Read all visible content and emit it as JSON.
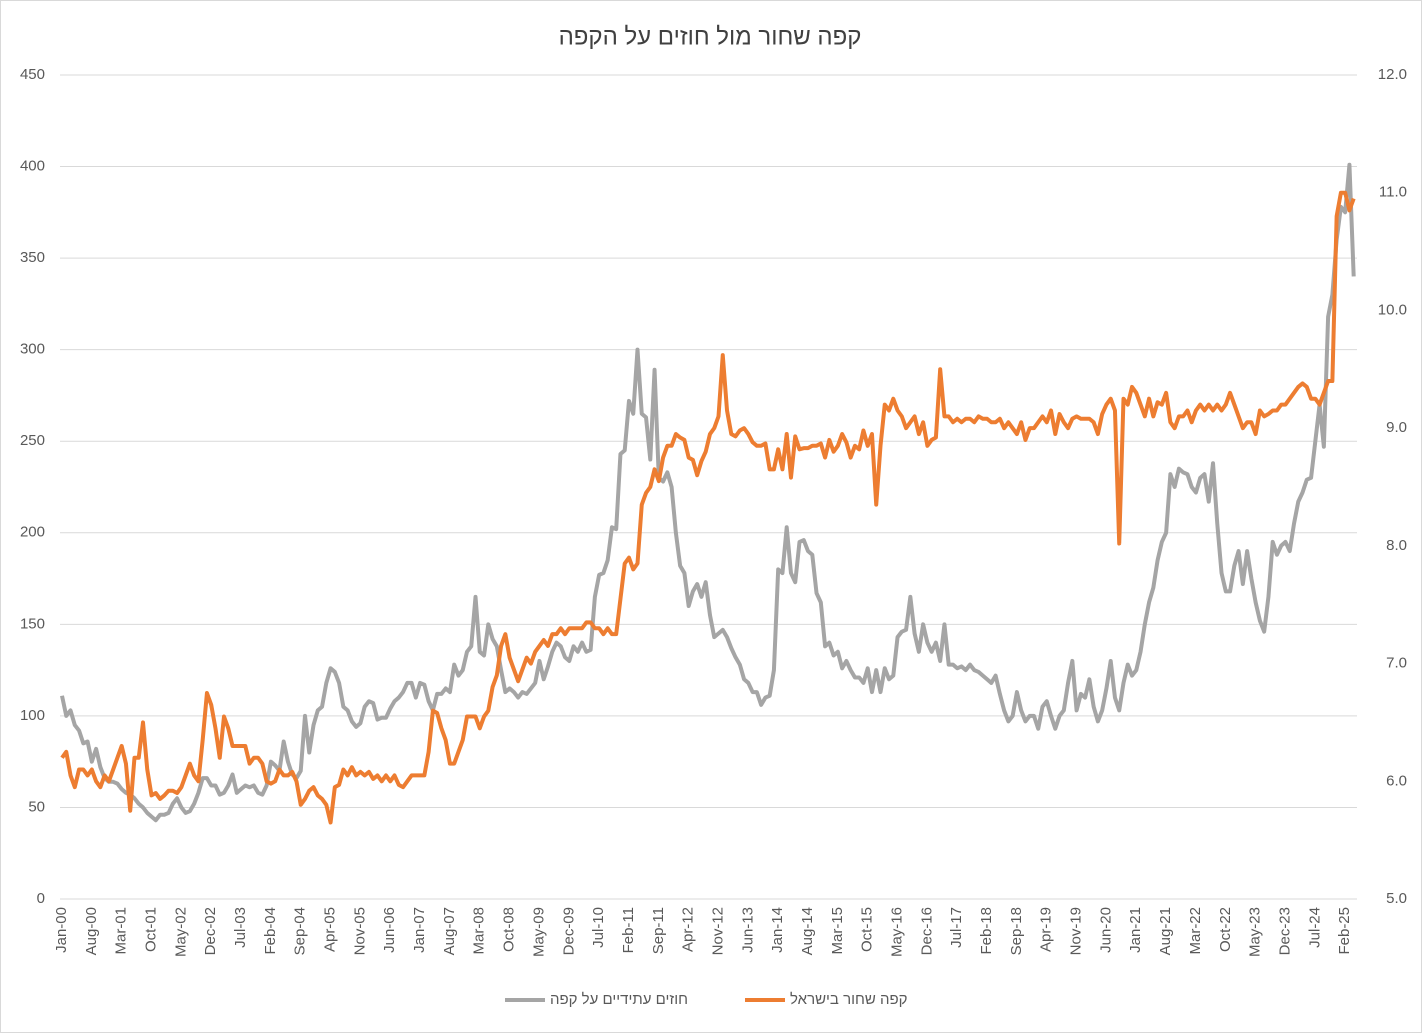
{
  "chart_data": {
    "type": "line",
    "title": "קפה שחור מול חוזים על הקפה",
    "categories": [
      "Jan-00",
      null,
      null,
      null,
      null,
      null,
      null,
      "Aug-00",
      null,
      null,
      null,
      null,
      null,
      null,
      "Mar-01",
      null,
      null,
      null,
      null,
      null,
      null,
      "Oct-01",
      null,
      null,
      null,
      null,
      null,
      null,
      "May-02",
      null,
      null,
      null,
      null,
      null,
      null,
      "Dec-02",
      null,
      null,
      null,
      null,
      null,
      null,
      "Jul-03",
      null,
      null,
      null,
      null,
      null,
      null,
      "Feb-04",
      null,
      null,
      null,
      null,
      null,
      null,
      "Sep-04",
      null,
      null,
      null,
      null,
      null,
      null,
      "Apr-05",
      null,
      null,
      null,
      null,
      null,
      null,
      "Nov-05",
      null,
      null,
      null,
      null,
      null,
      null,
      "Jun-06",
      null,
      null,
      null,
      null,
      null,
      null,
      "Jan-07",
      null,
      null,
      null,
      null,
      null,
      null,
      "Aug-07",
      null,
      null,
      null,
      null,
      null,
      null,
      "Mar-08",
      null,
      null,
      null,
      null,
      null,
      null,
      "Oct-08",
      null,
      null,
      null,
      null,
      null,
      null,
      "May-09",
      null,
      null,
      null,
      null,
      null,
      null,
      "Dec-09",
      null,
      null,
      null,
      null,
      null,
      null,
      "Jul-10",
      null,
      null,
      null,
      null,
      null,
      null,
      "Feb-11",
      null,
      null,
      null,
      null,
      null,
      null,
      "Sep-11",
      null,
      null,
      null,
      null,
      null,
      null,
      "Apr-12",
      null,
      null,
      null,
      null,
      null,
      null,
      "Nov-12",
      null,
      null,
      null,
      null,
      null,
      null,
      "Jun-13",
      null,
      null,
      null,
      null,
      null,
      null,
      "Jan-14",
      null,
      null,
      null,
      null,
      null,
      null,
      "Aug-14",
      null,
      null,
      null,
      null,
      null,
      null,
      "Mar-15",
      null,
      null,
      null,
      null,
      null,
      null,
      "Oct-15",
      null,
      null,
      null,
      null,
      null,
      null,
      "May-16",
      null,
      null,
      null,
      null,
      null,
      null,
      "Dec-16",
      null,
      null,
      null,
      null,
      null,
      null,
      "Jul-17",
      null,
      null,
      null,
      null,
      null,
      null,
      "Feb-18",
      null,
      null,
      null,
      null,
      null,
      null,
      "Sep-18",
      null,
      null,
      null,
      null,
      null,
      null,
      "Apr-19",
      null,
      null,
      null,
      null,
      null,
      null,
      "Nov-19",
      null,
      null,
      null,
      null,
      null,
      null,
      "Jun-20",
      null,
      null,
      null,
      null,
      null,
      null,
      "Jan-21",
      null,
      null,
      null,
      null,
      null,
      null,
      "Aug-21",
      null,
      null,
      null,
      null,
      null,
      null,
      "Mar-22",
      null,
      null,
      null,
      null,
      null,
      null,
      "Oct-22",
      null,
      null,
      null,
      null,
      null,
      null,
      "May-23",
      null,
      null,
      null,
      null,
      null,
      null,
      "Dec-23",
      null,
      null,
      null,
      null,
      null,
      null,
      "Jul-24",
      null,
      null,
      null,
      null,
      null,
      null,
      "Feb-25",
      null,
      null
    ],
    "series": [
      {
        "name": "חוזים עתידיים על קפה",
        "color": "#a5a5a5",
        "axis": "y",
        "values": [
          111,
          100,
          103,
          95,
          92,
          85,
          86,
          75,
          82,
          72,
          66,
          64,
          64,
          63,
          60,
          58,
          57,
          55,
          52,
          50,
          47,
          45,
          43,
          46,
          46,
          47,
          52,
          55,
          50,
          47,
          48,
          52,
          58,
          66,
          66,
          62,
          62,
          57,
          58,
          62,
          68,
          58,
          60,
          62,
          61,
          62,
          58,
          57,
          62,
          75,
          73,
          70,
          86,
          75,
          68,
          66,
          70,
          100,
          80,
          95,
          103,
          105,
          118,
          126,
          124,
          118,
          105,
          103,
          97,
          94,
          96,
          105,
          108,
          107,
          98,
          99,
          99,
          104,
          108,
          110,
          113,
          118,
          118,
          110,
          118,
          117,
          108,
          103,
          112,
          112,
          115,
          113,
          128,
          122,
          125,
          135,
          138,
          165,
          135,
          133,
          150,
          142,
          138,
          125,
          113,
          115,
          113,
          110,
          113,
          112,
          115,
          118,
          130,
          120,
          127,
          135,
          140,
          138,
          132,
          130,
          138,
          135,
          140,
          135,
          136,
          165,
          177,
          178,
          185,
          203,
          202,
          243,
          245,
          272,
          265,
          300,
          265,
          263,
          240,
          289,
          230,
          228,
          233,
          225,
          200,
          182,
          178,
          160,
          168,
          172,
          165,
          173,
          155,
          143,
          145,
          147,
          143,
          137,
          132,
          128,
          120,
          118,
          113,
          113,
          106,
          110,
          111,
          125,
          180,
          178,
          203,
          178,
          173,
          195,
          196,
          190,
          188,
          167,
          162,
          138,
          140,
          133,
          135,
          126,
          130,
          125,
          121,
          121,
          118,
          126,
          113,
          125,
          113,
          126,
          120,
          122,
          143,
          146,
          147,
          165,
          145,
          135,
          150,
          140,
          135,
          140,
          130,
          150,
          128,
          128,
          126,
          127,
          125,
          128,
          125,
          124,
          122,
          120,
          118,
          122,
          112,
          103,
          97,
          100,
          113,
          103,
          97,
          100,
          100,
          93,
          105,
          108,
          100,
          93,
          100,
          103,
          118,
          130,
          103,
          112,
          110,
          120,
          105,
          97,
          103,
          115,
          130,
          110,
          103,
          118,
          128,
          122,
          125,
          135,
          150,
          162,
          170,
          185,
          195,
          200,
          232,
          225,
          235,
          233,
          232,
          225,
          222,
          230,
          232,
          217,
          238,
          205,
          178,
          168,
          168,
          182,
          190,
          172,
          190,
          175,
          162,
          152,
          146,
          165,
          195,
          188,
          193,
          195,
          190,
          205,
          217,
          222,
          229,
          230,
          250,
          270,
          247,
          318,
          330,
          360,
          378,
          375,
          401,
          340
        ]
      },
      {
        "name": "קפה שחור בישראל",
        "color": "#ed7d31",
        "axis": "y2",
        "values": [
          6.2,
          6.25,
          6.05,
          5.95,
          6.1,
          6.1,
          6.05,
          6.1,
          6.0,
          5.95,
          6.05,
          6.0,
          6.1,
          6.2,
          6.3,
          6.15,
          5.75,
          6.2,
          6.2,
          6.5,
          6.1,
          5.88,
          5.9,
          5.85,
          5.88,
          5.92,
          5.92,
          5.9,
          5.95,
          6.05,
          6.15,
          6.05,
          6.0,
          6.35,
          6.75,
          6.65,
          6.45,
          6.2,
          6.55,
          6.45,
          6.3,
          6.3,
          6.3,
          6.3,
          6.15,
          6.2,
          6.2,
          6.15,
          6.0,
          5.98,
          6.0,
          6.1,
          6.05,
          6.05,
          6.08,
          6.0,
          5.8,
          5.85,
          5.92,
          5.95,
          5.88,
          5.85,
          5.8,
          5.65,
          5.95,
          5.97,
          6.1,
          6.05,
          6.12,
          6.05,
          6.08,
          6.05,
          6.08,
          6.02,
          6.05,
          6.0,
          6.05,
          6.0,
          6.05,
          5.97,
          5.95,
          6.0,
          6.05,
          6.05,
          6.05,
          6.05,
          6.25,
          6.6,
          6.58,
          6.45,
          6.35,
          6.15,
          6.15,
          6.25,
          6.35,
          6.55,
          6.55,
          6.55,
          6.45,
          6.55,
          6.6,
          6.8,
          6.9,
          7.15,
          7.25,
          7.05,
          6.95,
          6.85,
          6.95,
          7.05,
          7.0,
          7.1,
          7.15,
          7.2,
          7.15,
          7.25,
          7.25,
          7.3,
          7.25,
          7.3,
          7.3,
          7.3,
          7.3,
          7.35,
          7.35,
          7.3,
          7.3,
          7.25,
          7.3,
          7.25,
          7.25,
          7.55,
          7.85,
          7.9,
          7.8,
          7.85,
          8.35,
          8.45,
          8.5,
          8.65,
          8.55,
          8.75,
          8.85,
          8.85,
          8.95,
          8.92,
          8.9,
          8.75,
          8.73,
          8.6,
          8.72,
          8.8,
          8.95,
          9.0,
          9.1,
          9.62,
          9.15,
          8.95,
          8.93,
          8.98,
          9.0,
          8.95,
          8.88,
          8.85,
          8.85,
          8.87,
          8.65,
          8.65,
          8.82,
          8.65,
          8.95,
          8.58,
          8.93,
          8.82,
          8.83,
          8.83,
          8.85,
          8.85,
          8.87,
          8.75,
          8.9,
          8.8,
          8.85,
          8.95,
          8.88,
          8.75,
          8.85,
          8.82,
          8.98,
          8.85,
          8.95,
          8.35,
          8.85,
          9.2,
          9.15,
          9.25,
          9.15,
          9.1,
          9.0,
          9.05,
          9.1,
          8.95,
          9.05,
          8.85,
          8.9,
          8.92,
          9.5,
          9.1,
          9.1,
          9.05,
          9.08,
          9.05,
          9.08,
          9.08,
          9.05,
          9.1,
          9.08,
          9.08,
          9.05,
          9.05,
          9.08,
          9.0,
          9.05,
          9.0,
          8.95,
          9.05,
          8.9,
          9.0,
          9.0,
          9.05,
          9.1,
          9.05,
          9.15,
          8.95,
          9.12,
          9.05,
          9.0,
          9.08,
          9.1,
          9.08,
          9.08,
          9.08,
          9.05,
          8.95,
          9.12,
          9.2,
          9.25,
          9.15,
          8.02,
          9.25,
          9.2,
          9.35,
          9.3,
          9.2,
          9.1,
          9.25,
          9.1,
          9.22,
          9.2,
          9.3,
          9.05,
          9.0,
          9.1,
          9.1,
          9.15,
          9.05,
          9.15,
          9.2,
          9.15,
          9.2,
          9.15,
          9.2,
          9.15,
          9.2,
          9.3,
          9.2,
          9.1,
          9.0,
          9.05,
          9.05,
          8.95,
          9.15,
          9.1,
          9.12,
          9.15,
          9.15,
          9.2,
          9.2,
          9.25,
          9.3,
          9.35,
          9.38,
          9.35,
          9.25,
          9.25,
          9.2,
          9.3,
          9.4,
          9.4,
          10.8,
          11.0,
          11.0,
          10.85,
          10.95
        ]
      }
    ],
    "ylim": [
      0,
      450
    ],
    "yticks": [
      0,
      50,
      100,
      150,
      200,
      250,
      300,
      350,
      400,
      450
    ],
    "y2lim": [
      5,
      12
    ],
    "y2ticks": [
      {
        "value": 5,
        "label": "5.0"
      },
      {
        "value": 6,
        "label": "6.0"
      },
      {
        "value": 7,
        "label": "7.0"
      },
      {
        "value": 8,
        "label": "8.0"
      },
      {
        "value": 9,
        "label": "9.0"
      },
      {
        "value": 10,
        "label": "10.0"
      },
      {
        "value": 11,
        "label": "11.0"
      },
      {
        "value": 12,
        "label": "12.0"
      }
    ],
    "grid": true,
    "legend": "bottom"
  }
}
